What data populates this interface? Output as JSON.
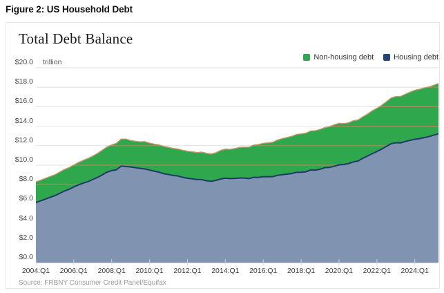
{
  "figure_label": "Figure 2: US Household Debt",
  "chart": {
    "title": "Total Debt Balance",
    "unit": "trillion",
    "source": "Source: FRBNY Consumer Credit Panel/Equifax",
    "legend": [
      {
        "label": "Non-housing debt",
        "color": "#2fa84d"
      },
      {
        "label": "Housing debt",
        "color": "#20457c"
      }
    ]
  },
  "chart_data": {
    "type": "area",
    "stacked": true,
    "title": "Total Debt Balance",
    "ylabel": "$ trillion",
    "ylim": [
      0,
      20
    ],
    "y_ticks": [
      "$20.0",
      "$18.0",
      "$16.0",
      "$14.0",
      "$12.0",
      "$10.0",
      "$8.0",
      "$6.0",
      "$4.0",
      "$2.0",
      "$0.0"
    ],
    "y_tick_values": [
      20,
      18,
      16,
      14,
      12,
      10,
      8,
      6,
      4,
      2,
      0
    ],
    "x_ticks": [
      "2004:Q1",
      "2006:Q1",
      "2008:Q1",
      "2010:Q1",
      "2012:Q1",
      "2014:Q1",
      "2016:Q1",
      "2018:Q1",
      "2020:Q1",
      "2022:Q1",
      "2024:Q1"
    ],
    "x_start": "2004:Q1",
    "x_end": "2025:Q2",
    "frequency": "quarterly",
    "grid": "horizontal",
    "legend_position": "top-right",
    "colors": {
      "housing_fill": "#8093b0",
      "housing_line": "#1e3a68",
      "nonhousing_fill": "#2fa84d",
      "total_line": "#c9986b",
      "gridline": "#e2e2e2",
      "gridline_over_area": "#bf8a58",
      "baseline": "#b0b0b0"
    },
    "series": [
      {
        "name": "Housing debt",
        "values": [
          6.17,
          6.34,
          6.51,
          6.7,
          6.87,
          7.1,
          7.34,
          7.52,
          7.76,
          7.98,
          8.16,
          8.31,
          8.53,
          8.74,
          9.0,
          9.28,
          9.44,
          9.53,
          9.9,
          9.86,
          9.81,
          9.74,
          9.67,
          9.61,
          9.5,
          9.38,
          9.28,
          9.12,
          9.04,
          8.94,
          8.89,
          8.75,
          8.65,
          8.6,
          8.53,
          8.52,
          8.39,
          8.34,
          8.44,
          8.58,
          8.66,
          8.62,
          8.64,
          8.68,
          8.68,
          8.62,
          8.75,
          8.74,
          8.82,
          8.81,
          8.82,
          8.95,
          9.02,
          9.08,
          9.14,
          9.26,
          9.27,
          9.32,
          9.5,
          9.49,
          9.58,
          9.74,
          9.77,
          9.9,
          10.03,
          10.07,
          10.16,
          10.33,
          10.43,
          10.7,
          10.93,
          11.18,
          11.4,
          11.65,
          11.92,
          12.2,
          12.3,
          12.29,
          12.43,
          12.55,
          12.66,
          12.72,
          12.83,
          12.94,
          13.08,
          13.22
        ]
      },
      {
        "name": "Non-housing debt",
        "values": [
          2.12,
          2.12,
          2.14,
          2.14,
          2.15,
          2.19,
          2.22,
          2.23,
          2.26,
          2.3,
          2.34,
          2.38,
          2.4,
          2.47,
          2.54,
          2.59,
          2.64,
          2.72,
          2.78,
          2.82,
          2.72,
          2.72,
          2.73,
          2.81,
          2.77,
          2.78,
          2.81,
          2.81,
          2.8,
          2.78,
          2.77,
          2.78,
          2.79,
          2.78,
          2.78,
          2.82,
          2.84,
          2.81,
          2.84,
          2.94,
          2.99,
          3.01,
          3.07,
          3.15,
          3.17,
          3.23,
          3.32,
          3.38,
          3.43,
          3.48,
          3.53,
          3.63,
          3.71,
          3.76,
          3.82,
          3.89,
          3.94,
          3.97,
          4.01,
          4.05,
          4.09,
          4.12,
          4.18,
          4.25,
          4.27,
          4.2,
          4.19,
          4.23,
          4.21,
          4.26,
          4.31,
          4.4,
          4.44,
          4.5,
          4.59,
          4.7,
          4.75,
          4.77,
          4.86,
          4.95,
          5.03,
          5.08,
          5.11,
          5.1,
          5.12,
          5.17
        ]
      }
    ]
  }
}
